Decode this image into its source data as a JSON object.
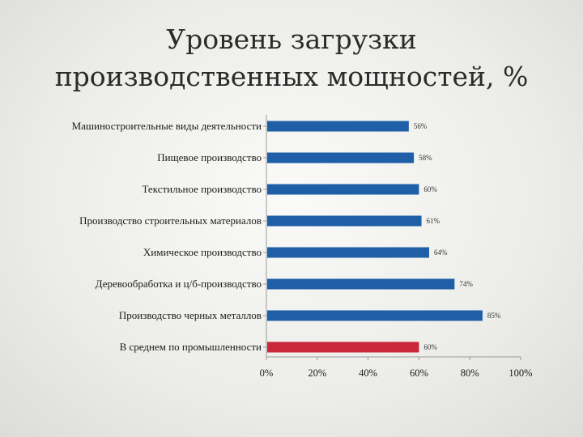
{
  "title_lines": [
    "Уровень загрузки",
    "производственных мощностей, %"
  ],
  "colors": {
    "bar": "#1f5fa8",
    "highlight": "#c8283a",
    "axis": "#9a9a9a"
  },
  "chart_data": {
    "type": "bar",
    "orientation": "horizontal",
    "title": "Уровень загрузки производственных мощностей, %",
    "xlabel": "",
    "ylabel": "",
    "xlim": [
      0,
      100
    ],
    "categories": [
      "Машиностроительные виды деятельности",
      "Пищевое производство",
      "Текстильное производство",
      "Производство строительных материалов",
      "Химическое производство",
      "Деревообработка и ц/б-производство",
      "Производство черных металлов",
      "В среднем по промышленности"
    ],
    "values": [
      56,
      58,
      60,
      61,
      64,
      74,
      85,
      60
    ],
    "value_labels": [
      "56%",
      "58%",
      "60%",
      "61%",
      "64%",
      "74%",
      "85%",
      "60%"
    ],
    "highlight_index": 7,
    "x_ticks": [
      0,
      20,
      40,
      60,
      80,
      100
    ],
    "x_tick_labels": [
      "0%",
      "20%",
      "40%",
      "60%",
      "80%",
      "100%"
    ],
    "grid": false,
    "legend": "none"
  }
}
